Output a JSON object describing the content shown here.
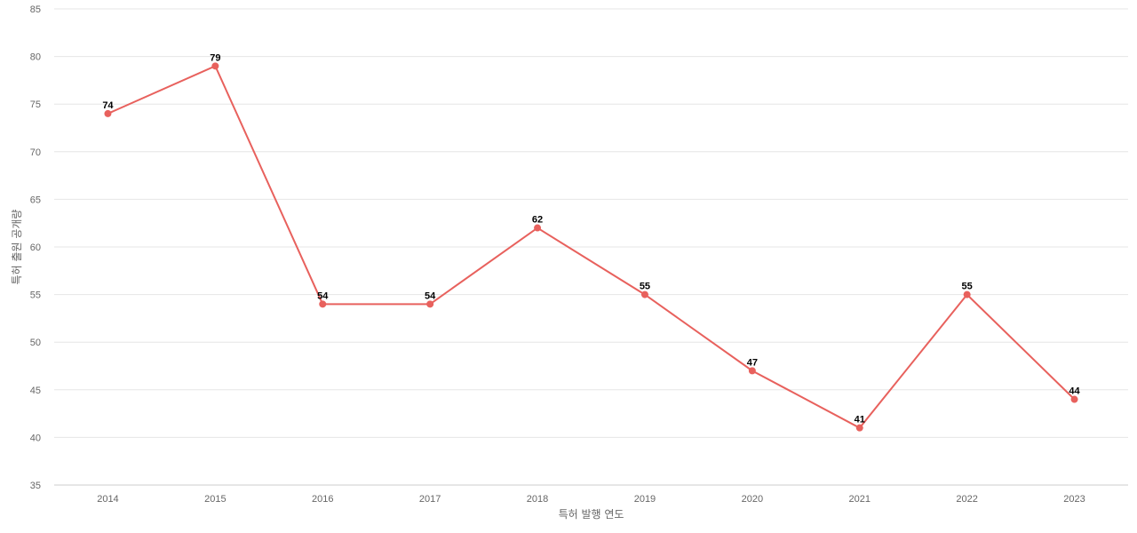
{
  "chart_data": {
    "type": "line",
    "categories": [
      "2014",
      "2015",
      "2016",
      "2017",
      "2018",
      "2019",
      "2020",
      "2021",
      "2022",
      "2023"
    ],
    "values": [
      74,
      79,
      54,
      54,
      62,
      55,
      47,
      41,
      55,
      44
    ],
    "xlabel": "특허 발행 연도",
    "ylabel": "특허 출원 공개량",
    "ylim": [
      35,
      85
    ],
    "yticks": [
      35,
      40,
      45,
      50,
      55,
      60,
      65,
      70,
      75,
      80,
      85
    ],
    "grid": true,
    "legend": "none",
    "color": "#e8615d"
  }
}
